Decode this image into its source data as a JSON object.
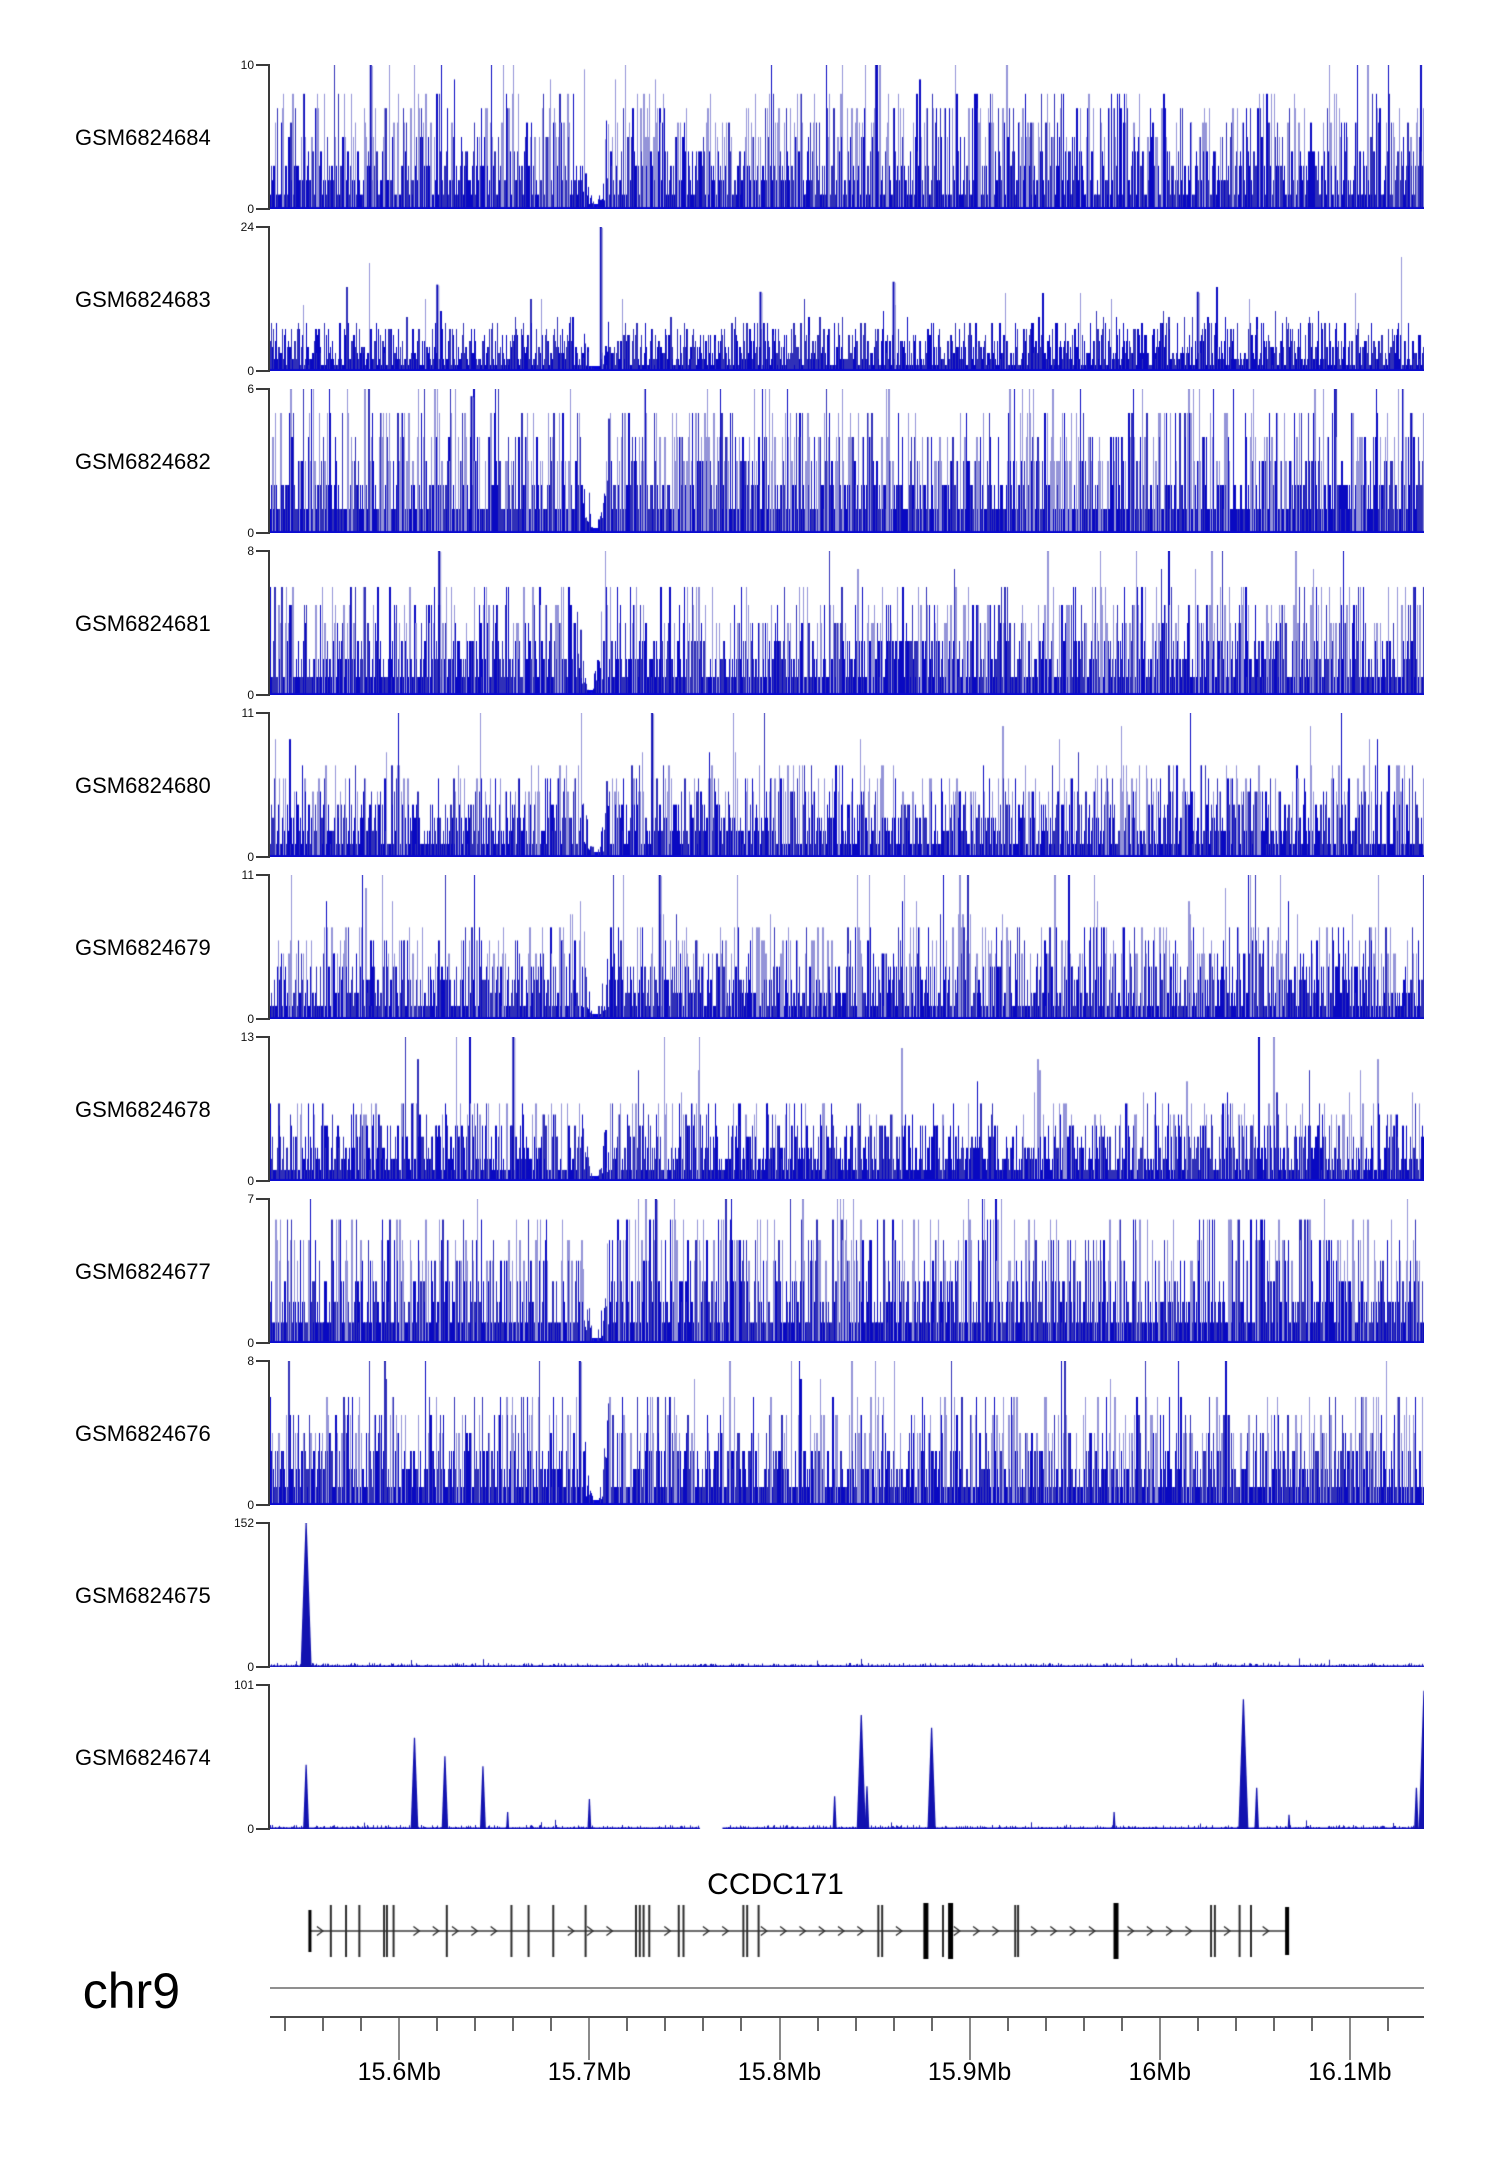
{
  "title": {
    "chrom_label": "chr9"
  },
  "chart_data": {
    "type": "bar",
    "subtype": "genome-coverage-tracks",
    "x_range_mb": [
      15.532,
      16.139
    ],
    "x_axis": {
      "unit": "Mb",
      "chromosome": "chr9",
      "minor_tick_step_mb": 0.02,
      "minor_tick_start_mb": 15.54,
      "minor_tick_end_mb": 16.12,
      "major_ticks": [
        {
          "mb": 15.6,
          "label": "15.6Mb"
        },
        {
          "mb": 15.7,
          "label": "15.7Mb"
        },
        {
          "mb": 15.8,
          "label": "15.8Mb"
        },
        {
          "mb": 15.9,
          "label": "15.9Mb"
        },
        {
          "mb": 16.0,
          "label": "16Mb"
        },
        {
          "mb": 16.1,
          "label": "16.1Mb"
        }
      ]
    },
    "tracks": [
      {
        "sample": "GSM6824684",
        "ymax": 10,
        "ymax_label": "10",
        "zero_label": "0",
        "style": "dense",
        "seed": 101,
        "mass": 0.38,
        "gap_mb": 15.703,
        "peaks": [
          {
            "mb": 15.585,
            "v": 1.0
          }
        ]
      },
      {
        "sample": "GSM6824683",
        "ymax": 24,
        "ymax_label": "24",
        "zero_label": "0",
        "style": "dense",
        "seed": 102,
        "mass": 0.17,
        "gap_mb": 15.703,
        "peaks": [
          {
            "mb": 15.706,
            "v": 1.0
          },
          {
            "mb": 15.62,
            "v": 0.6
          },
          {
            "mb": 15.79,
            "v": 0.55
          },
          {
            "mb": 15.86,
            "v": 0.62
          },
          {
            "mb": 16.02,
            "v": 0.55
          }
        ]
      },
      {
        "sample": "GSM6824682",
        "ymax": 6,
        "ymax_label": "6",
        "zero_label": "0",
        "style": "dense",
        "seed": 103,
        "mass": 0.45,
        "gap_mb": 15.703,
        "peaks": [
          {
            "mb": 15.638,
            "v": 0.95
          }
        ]
      },
      {
        "sample": "GSM6824681",
        "ymax": 8,
        "ymax_label": "8",
        "zero_label": "0",
        "style": "dense",
        "seed": 104,
        "mass": 0.36,
        "gap_mb": 15.7,
        "peaks": [
          {
            "mb": 15.621,
            "v": 1.0
          }
        ]
      },
      {
        "sample": "GSM6824680",
        "ymax": 11,
        "ymax_label": "11",
        "zero_label": "0",
        "style": "dense",
        "seed": 105,
        "mass": 0.3,
        "gap_mb": 15.703,
        "peaks": [
          {
            "mb": 15.733,
            "v": 1.0
          }
        ]
      },
      {
        "sample": "GSM6824679",
        "ymax": 11,
        "ymax_label": "11",
        "zero_label": "0",
        "style": "dense",
        "seed": 106,
        "mass": 0.32,
        "gap_mb": 15.703,
        "peaks": [
          {
            "mb": 15.737,
            "v": 1.0
          }
        ]
      },
      {
        "sample": "GSM6824678",
        "ymax": 13,
        "ymax_label": "13",
        "zero_label": "0",
        "style": "dense",
        "seed": 107,
        "mass": 0.27,
        "gap_mb": 15.703,
        "peaks": [
          {
            "mb": 15.66,
            "v": 1.0
          }
        ]
      },
      {
        "sample": "GSM6824677",
        "ymax": 7,
        "ymax_label": "7",
        "zero_label": "0",
        "style": "dense",
        "seed": 108,
        "mass": 0.42,
        "gap_mb": 15.703,
        "peaks": [
          {
            "mb": 15.735,
            "v": 1.0
          }
        ]
      },
      {
        "sample": "GSM6824676",
        "ymax": 8,
        "ymax_label": "8",
        "zero_label": "0",
        "style": "dense",
        "seed": 109,
        "mass": 0.36,
        "gap_mb": 15.703,
        "peaks": [
          {
            "mb": 15.695,
            "v": 1.0
          }
        ]
      },
      {
        "sample": "GSM6824675",
        "ymax": 152,
        "ymax_label": "152",
        "zero_label": "0",
        "style": "sparse",
        "seed": 110,
        "mass": 0.0,
        "peaks": [
          {
            "mb": 15.551,
            "value": 152
          }
        ]
      },
      {
        "sample": "GSM6824674",
        "ymax": 101,
        "ymax_label": "101",
        "zero_label": "0",
        "style": "sparse",
        "seed": 111,
        "mass": 0.0,
        "blank_mb": [
          15.758,
          15.77
        ],
        "peaks": [
          {
            "mb": 15.551,
            "value": 45
          },
          {
            "mb": 15.608,
            "value": 64
          },
          {
            "mb": 15.624,
            "value": 51
          },
          {
            "mb": 15.644,
            "value": 44
          },
          {
            "mb": 15.657,
            "value": 12
          },
          {
            "mb": 15.7,
            "value": 21
          },
          {
            "mb": 15.829,
            "value": 23
          },
          {
            "mb": 15.843,
            "value": 80
          },
          {
            "mb": 15.846,
            "value": 30
          },
          {
            "mb": 15.88,
            "value": 71
          },
          {
            "mb": 15.976,
            "value": 12
          },
          {
            "mb": 16.044,
            "value": 91
          },
          {
            "mb": 16.051,
            "value": 29
          },
          {
            "mb": 16.068,
            "value": 10
          },
          {
            "mb": 16.135,
            "value": 29
          },
          {
            "mb": 16.139,
            "value": 97
          }
        ]
      }
    ],
    "gene": {
      "label": "CCDC171",
      "chromosome": "chr9",
      "start_mb": 15.553,
      "end_mb": 16.067,
      "strand": "forward",
      "exons": [
        {
          "mb": 15.553,
          "w": 3
        },
        {
          "mb": 15.564,
          "w": 2
        },
        {
          "mb": 15.572,
          "w": 2
        },
        {
          "mb": 15.579,
          "w": 2
        },
        {
          "mb": 15.592,
          "w": 2
        },
        {
          "mb": 15.5935,
          "w": 2
        },
        {
          "mb": 15.597,
          "w": 2
        },
        {
          "mb": 15.625,
          "w": 2
        },
        {
          "mb": 15.659,
          "w": 2
        },
        {
          "mb": 15.668,
          "w": 2
        },
        {
          "mb": 15.681,
          "w": 2
        },
        {
          "mb": 15.698,
          "w": 2
        },
        {
          "mb": 15.7245,
          "w": 2
        },
        {
          "mb": 15.7265,
          "w": 2
        },
        {
          "mb": 15.7285,
          "w": 2
        },
        {
          "mb": 15.7315,
          "w": 2
        },
        {
          "mb": 15.747,
          "w": 2
        },
        {
          "mb": 15.7495,
          "w": 2
        },
        {
          "mb": 15.781,
          "w": 2
        },
        {
          "mb": 15.783,
          "w": 2
        },
        {
          "mb": 15.789,
          "w": 2
        },
        {
          "mb": 15.852,
          "w": 2
        },
        {
          "mb": 15.854,
          "w": 2
        },
        {
          "mb": 15.877,
          "w": 5
        },
        {
          "mb": 15.886,
          "w": 2
        },
        {
          "mb": 15.89,
          "w": 5
        },
        {
          "mb": 15.924,
          "w": 2
        },
        {
          "mb": 15.9255,
          "w": 2
        },
        {
          "mb": 15.977,
          "w": 5
        },
        {
          "mb": 16.027,
          "w": 2
        },
        {
          "mb": 16.029,
          "w": 2
        },
        {
          "mb": 16.042,
          "w": 2
        },
        {
          "mb": 16.048,
          "w": 2
        },
        {
          "mb": 16.067,
          "w": 4
        }
      ]
    }
  }
}
